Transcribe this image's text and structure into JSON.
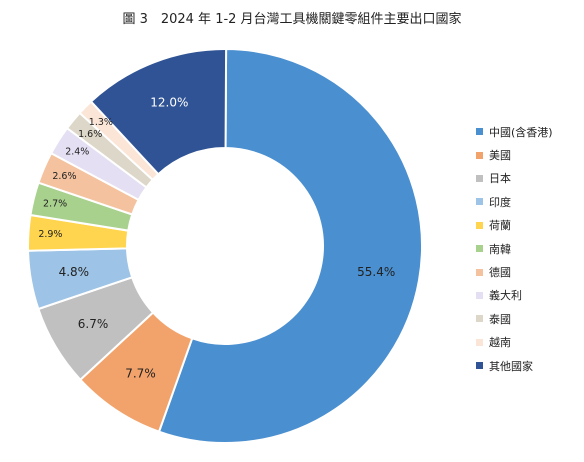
{
  "chart_data": {
    "type": "pie",
    "donut": true,
    "title": "圖 3　2024 年 1-2 月台灣工具機關鍵零組件主要出口國家",
    "unit": "%",
    "legend_position": "right",
    "slices": [
      {
        "name": "中國(含香港)",
        "value": 55.4,
        "label": "55.4%",
        "color": "#4a8fd0"
      },
      {
        "name": "美國",
        "value": 7.7,
        "label": "7.7%",
        "color": "#f2a36b"
      },
      {
        "name": "日本",
        "value": 6.7,
        "label": "6.7%",
        "color": "#c0c0c0"
      },
      {
        "name": "印度",
        "value": 4.8,
        "label": "4.8%",
        "color": "#9dc3e6"
      },
      {
        "name": "荷蘭",
        "value": 2.9,
        "label": "2.9%",
        "color": "#ffd54f"
      },
      {
        "name": "南韓",
        "value": 2.7,
        "label": "2.7%",
        "color": "#a9d18e"
      },
      {
        "name": "德國",
        "value": 2.6,
        "label": "2.6%",
        "color": "#f4c29f"
      },
      {
        "name": "義大利",
        "value": 2.4,
        "label": "2.4%",
        "color": "#e4dff2"
      },
      {
        "name": "泰國",
        "value": 1.6,
        "label": "1.6%",
        "color": "#dcd7c8"
      },
      {
        "name": "越南",
        "value": 1.3,
        "label": "1.3%",
        "color": "#fbe5d6"
      },
      {
        "name": "其他國家",
        "value": 12.0,
        "label": "12.0%",
        "color": "#2f5394"
      }
    ]
  }
}
